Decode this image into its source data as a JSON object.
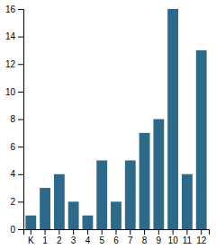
{
  "chart_data": {
    "type": "bar",
    "categories": [
      "K",
      "1",
      "2",
      "3",
      "4",
      "5",
      "6",
      "7",
      "8",
      "9",
      "10",
      "11",
      "12"
    ],
    "values": [
      1,
      3,
      4,
      2,
      1,
      5,
      2,
      5,
      7,
      8,
      16,
      4,
      13
    ],
    "color": "#2d6a8a",
    "ylim": [
      0,
      16
    ],
    "yticks": [
      0,
      2,
      4,
      6,
      8,
      10,
      12,
      14,
      16
    ],
    "grid": false
  }
}
